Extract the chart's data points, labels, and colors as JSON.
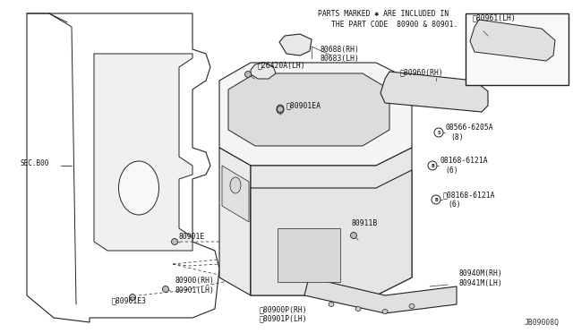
{
  "bg_color": "#ffffff",
  "note_line1": "PARTS MARKED ✱ ARE INCLUDED IN",
  "note_line2": "THE PART CODE  80900 & 80901.",
  "diagram_id": "JB09008Q",
  "sec_label": "SEC.B00",
  "lc": "#222222",
  "lw": 0.8
}
